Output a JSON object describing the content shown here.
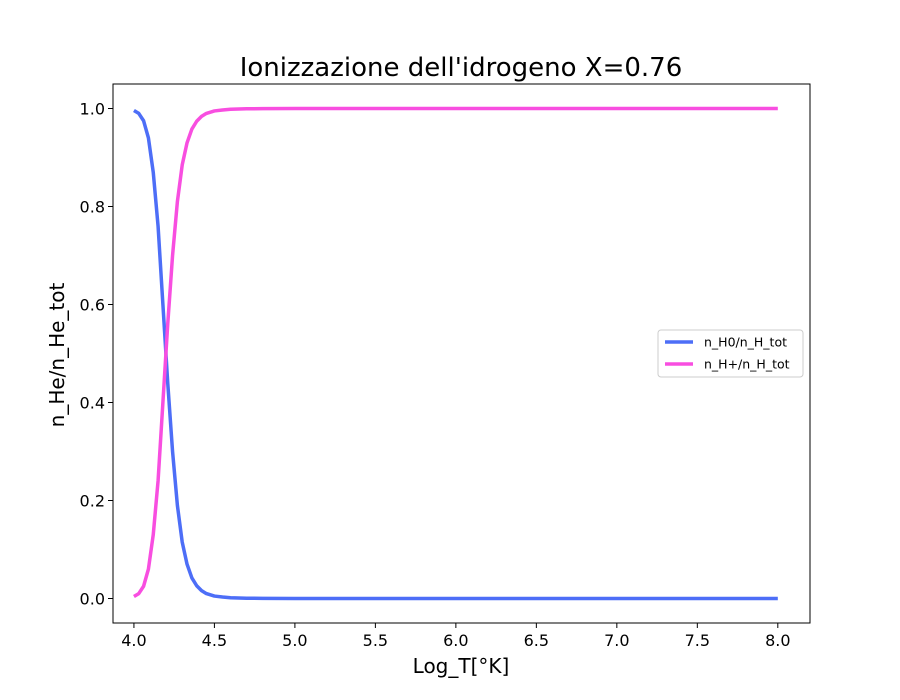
{
  "chart_data": {
    "type": "line",
    "title": "Ionizzazione dell'idrogeno X=0.76",
    "xlabel": "Log_T[°K]",
    "ylabel": "n_He/n_He_tot",
    "xlim": [
      3.87,
      8.2
    ],
    "ylim": [
      -0.05,
      1.05
    ],
    "x_ticks": [
      4.0,
      4.5,
      5.0,
      5.5,
      6.0,
      6.5,
      7.0,
      7.5,
      8.0
    ],
    "x_tick_labels": [
      "4.0",
      "4.5",
      "5.0",
      "5.5",
      "6.0",
      "6.5",
      "7.0",
      "7.5",
      "8.0"
    ],
    "y_ticks": [
      0.0,
      0.2,
      0.4,
      0.6,
      0.8,
      1.0
    ],
    "y_tick_labels": [
      "0.0",
      "0.2",
      "0.4",
      "0.6",
      "0.8",
      "1.0"
    ],
    "grid": false,
    "legend_position": "center-right",
    "x": [
      4.0,
      4.03,
      4.06,
      4.09,
      4.12,
      4.15,
      4.18,
      4.21,
      4.24,
      4.27,
      4.3,
      4.33,
      4.36,
      4.39,
      4.42,
      4.45,
      4.5,
      4.55,
      4.6,
      4.7,
      4.8,
      5.0,
      5.5,
      6.0,
      6.5,
      7.0,
      7.5,
      8.0
    ],
    "series": [
      {
        "name": "n_H0/n_H_tot",
        "color": "#4d6ef7",
        "values": [
          0.996,
          0.99,
          0.975,
          0.94,
          0.87,
          0.76,
          0.6,
          0.44,
          0.3,
          0.19,
          0.115,
          0.07,
          0.042,
          0.026,
          0.016,
          0.01,
          0.005,
          0.003,
          0.0015,
          0.0006,
          0.0003,
          0.0001,
          0.0,
          0.0,
          0.0,
          0.0,
          0.0,
          0.0
        ]
      },
      {
        "name": "n_H+/n_H_tot",
        "color": "#f84ee0",
        "values": [
          0.004,
          0.01,
          0.025,
          0.06,
          0.13,
          0.24,
          0.4,
          0.56,
          0.7,
          0.81,
          0.885,
          0.93,
          0.958,
          0.974,
          0.984,
          0.99,
          0.995,
          0.997,
          0.9985,
          0.9994,
          0.9997,
          0.9999,
          1.0,
          1.0,
          1.0,
          1.0,
          1.0,
          1.0
        ]
      }
    ]
  }
}
